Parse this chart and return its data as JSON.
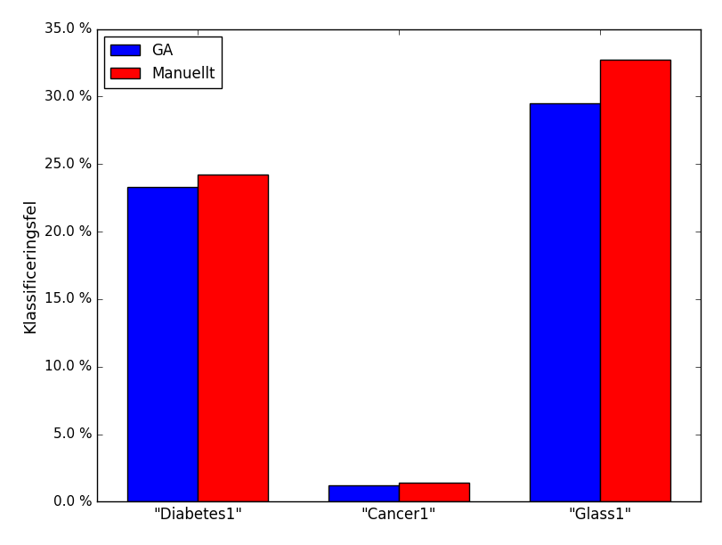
{
  "categories": [
    "\"Diabetes1\"",
    "\"Cancer1\"",
    "\"Glass1\""
  ],
  "ga_values": [
    0.233,
    0.012,
    0.295
  ],
  "manual_values": [
    0.242,
    0.014,
    0.327
  ],
  "ga_color": "#0000ff",
  "manual_color": "#ff0000",
  "ylabel": "Klassificeringsfel",
  "ylim": [
    0,
    0.35
  ],
  "yticks": [
    0.0,
    0.05,
    0.1,
    0.15,
    0.2,
    0.25,
    0.3,
    0.35
  ],
  "legend_labels": [
    "GA",
    "Manuellt"
  ],
  "bar_width": 0.35,
  "figsize": [
    8.12,
    6.12
  ],
  "dpi": 100
}
